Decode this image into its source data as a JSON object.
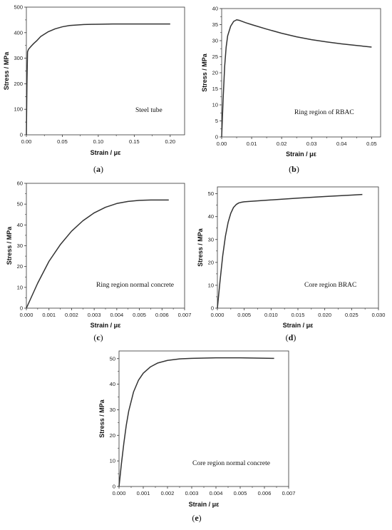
{
  "chart_data": [
    {
      "type": "line",
      "panel": "a",
      "annotation": "Steel tube",
      "xlabel": "Strain / με",
      "ylabel": "Stress / MPa",
      "xlim": [
        0,
        0.22
      ],
      "ylim": [
        0,
        500
      ],
      "xticks": [
        0.0,
        0.05,
        0.1,
        0.15,
        0.2
      ],
      "xtick_labels": [
        "0.00",
        "0.05",
        "0.10",
        "0.15",
        "0.20"
      ],
      "yticks": [
        0,
        100,
        200,
        300,
        400,
        500
      ],
      "ytick_labels": [
        "0",
        "100",
        "200",
        "300",
        "400",
        "500"
      ],
      "x": [
        0,
        0.0008,
        0.0016,
        0.003,
        0.006,
        0.01,
        0.015,
        0.02,
        0.03,
        0.04,
        0.05,
        0.06,
        0.08,
        0.1,
        0.12,
        0.15,
        0.2
      ],
      "y": [
        0,
        200,
        325,
        335,
        345,
        357,
        370,
        385,
        403,
        415,
        423,
        428,
        432,
        433,
        434,
        434,
        434
      ]
    },
    {
      "type": "line",
      "panel": "b",
      "annotation": "Ring region of RBAC",
      "xlabel": "Strain / με",
      "ylabel": "Stress / MPa",
      "xlim": [
        0,
        0.053
      ],
      "ylim": [
        0,
        40
      ],
      "xticks": [
        0.0,
        0.01,
        0.02,
        0.03,
        0.04,
        0.05
      ],
      "xtick_labels": [
        "0.00",
        "0.01",
        "0.02",
        "0.03",
        "0.04",
        "0.05"
      ],
      "yticks": [
        0,
        5,
        10,
        15,
        20,
        25,
        30,
        35,
        40
      ],
      "ytick_labels": [
        "0",
        "5",
        "10",
        "15",
        "20",
        "25",
        "30",
        "35",
        "40"
      ],
      "x": [
        0,
        0.0005,
        0.001,
        0.0015,
        0.002,
        0.003,
        0.004,
        0.005,
        0.006,
        0.008,
        0.01,
        0.015,
        0.02,
        0.025,
        0.03,
        0.035,
        0.04,
        0.045,
        0.05
      ],
      "y": [
        0,
        12,
        22,
        28,
        31.5,
        34.5,
        36,
        36.5,
        36.3,
        35.6,
        35,
        33.6,
        32.3,
        31.2,
        30.3,
        29.6,
        29,
        28.5,
        28
      ]
    },
    {
      "type": "line",
      "panel": "c",
      "annotation": "Ring region normal concrete",
      "xlabel": "Strain / με",
      "ylabel": "Stress / MPa",
      "xlim": [
        0,
        0.007
      ],
      "ylim": [
        0,
        60
      ],
      "xticks": [
        0.0,
        0.001,
        0.002,
        0.003,
        0.004,
        0.005,
        0.006,
        0.007
      ],
      "xtick_labels": [
        "0.000",
        "0.001",
        "0.002",
        "0.003",
        "0.004",
        "0.005",
        "0.006",
        "0.007"
      ],
      "yticks": [
        0,
        10,
        20,
        30,
        40,
        50,
        60
      ],
      "ytick_labels": [
        "0",
        "10",
        "20",
        "30",
        "40",
        "50",
        "60"
      ],
      "x": [
        0,
        0.0005,
        0.001,
        0.0015,
        0.002,
        0.0025,
        0.003,
        0.0035,
        0.004,
        0.0045,
        0.005,
        0.0055,
        0.006,
        0.0063
      ],
      "y": [
        0,
        12,
        22.5,
        30.5,
        37,
        42,
        45.8,
        48.5,
        50.3,
        51.3,
        51.8,
        52,
        52,
        52
      ]
    },
    {
      "type": "line",
      "panel": "d",
      "annotation": "Core region BRAC",
      "xlabel": "Strain / με",
      "ylabel": "Stress / MPa",
      "xlim": [
        0,
        0.03
      ],
      "ylim": [
        0,
        53
      ],
      "xticks": [
        0.0,
        0.005,
        0.01,
        0.015,
        0.02,
        0.025,
        0.03
      ],
      "xtick_labels": [
        "0.000",
        "0.005",
        "0.010",
        "0.015",
        "0.020",
        "0.025",
        "0.030"
      ],
      "yticks": [
        0,
        10,
        20,
        30,
        40,
        50
      ],
      "ytick_labels": [
        "0",
        "10",
        "20",
        "30",
        "40",
        "50"
      ],
      "x": [
        0,
        0.0005,
        0.001,
        0.0015,
        0.002,
        0.0025,
        0.003,
        0.0035,
        0.004,
        0.0045,
        0.005,
        0.01,
        0.015,
        0.02,
        0.025,
        0.027
      ],
      "y": [
        0,
        12,
        23,
        31.5,
        37.5,
        41.5,
        44,
        45.3,
        46,
        46.3,
        46.5,
        47.3,
        48.1,
        48.8,
        49.4,
        49.7
      ]
    },
    {
      "type": "line",
      "panel": "e",
      "annotation": "Core region normal concrete",
      "xlabel": "Strain / με",
      "ylabel": "Stress / MPa",
      "xlim": [
        0,
        0.007
      ],
      "ylim": [
        0,
        53
      ],
      "xticks": [
        0.0,
        0.001,
        0.002,
        0.003,
        0.004,
        0.005,
        0.006,
        0.007
      ],
      "xtick_labels": [
        "0.000",
        "0.001",
        "0.002",
        "0.003",
        "0.004",
        "0.005",
        "0.006",
        "0.007"
      ],
      "yticks": [
        0,
        10,
        20,
        30,
        40,
        50
      ],
      "ytick_labels": [
        "0",
        "10",
        "20",
        "30",
        "40",
        "50"
      ],
      "x": [
        0,
        0.0001,
        0.0002,
        0.0003,
        0.0004,
        0.0006,
        0.0008,
        0.001,
        0.0013,
        0.0016,
        0.002,
        0.0025,
        0.003,
        0.004,
        0.005,
        0.0064
      ],
      "y": [
        0,
        9,
        17,
        24,
        29.5,
        37,
        41.5,
        44.3,
        46.8,
        48.3,
        49.3,
        49.9,
        50.1,
        50.3,
        50.3,
        50.1
      ]
    }
  ]
}
